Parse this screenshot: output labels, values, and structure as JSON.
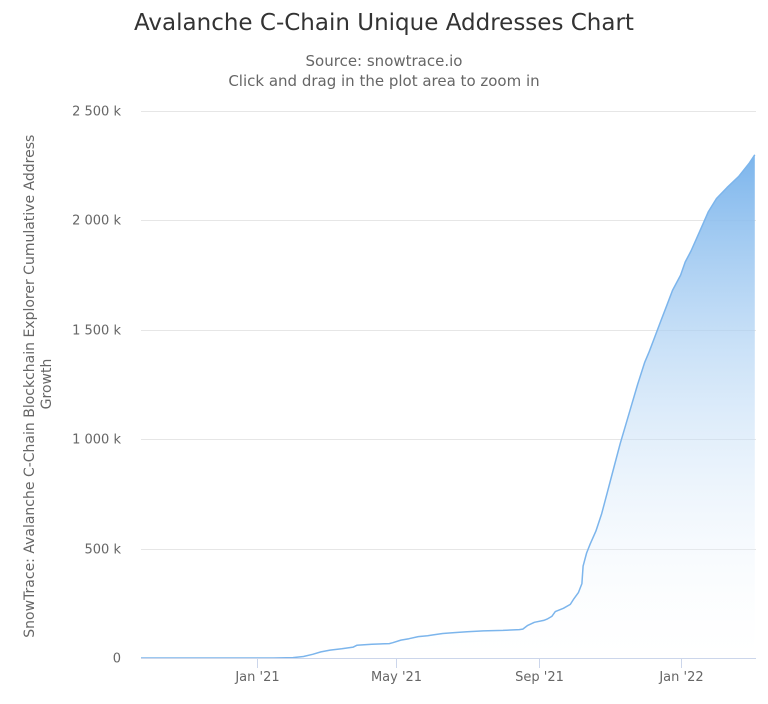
{
  "chart_data": {
    "type": "area",
    "title": "Avalanche C-Chain Unique Addresses Chart",
    "subtitle": "Source: snowtrace.io",
    "subtitle_hint": "Click and drag in the plot area to zoom in",
    "ylabel_lines": [
      "SnowTrace: Avalanche C-Chain Blockchain Explorer Cumulative Address",
      "Growth"
    ],
    "xlabel": "",
    "x_ticks": [
      {
        "date": "2021-01-01",
        "label": "Jan '21"
      },
      {
        "date": "2021-05-01",
        "label": "May '21"
      },
      {
        "date": "2021-09-01",
        "label": "Sep '21"
      },
      {
        "date": "2022-01-01",
        "label": "Jan '22"
      }
    ],
    "y_ticks": [
      {
        "value": 0,
        "label": "0"
      },
      {
        "value": 500000,
        "label": "500 k"
      },
      {
        "value": 1000000,
        "label": "1 000 k"
      },
      {
        "value": 1500000,
        "label": "1 500 k"
      },
      {
        "value": 2000000,
        "label": "2 000 k"
      },
      {
        "value": 2500000,
        "label": "2 500 k"
      }
    ],
    "xlim": [
      "2020-09-23",
      "2022-03-07"
    ],
    "ylim": [
      0,
      2500000
    ],
    "grid": true,
    "legend": "none",
    "colors": {
      "line": "#7cb5ec",
      "fill_top": "#7cb5ec",
      "fill_bottom": "#ffffff",
      "grid": "#e6e6e6",
      "axis": "#ccd6eb"
    },
    "series": [
      {
        "x": [
          "2020-09-23",
          "2020-10-15",
          "2020-11-15",
          "2020-12-15",
          "2021-01-15",
          "2021-02-01",
          "2021-02-10",
          "2021-02-18",
          "2021-02-25",
          "2021-03-05",
          "2021-03-15",
          "2021-03-25",
          "2021-03-28",
          "2021-04-10",
          "2021-04-25",
          "2021-04-28",
          "2021-05-05",
          "2021-05-12",
          "2021-05-20",
          "2021-05-28",
          "2021-06-01",
          "2021-06-10",
          "2021-06-20",
          "2021-07-01",
          "2021-07-15",
          "2021-08-01",
          "2021-08-15",
          "2021-08-18",
          "2021-08-22",
          "2021-08-28",
          "2021-09-05",
          "2021-09-08",
          "2021-09-12",
          "2021-09-15",
          "2021-09-22",
          "2021-09-28",
          "2021-10-01",
          "2021-10-05",
          "2021-10-08",
          "2021-10-09",
          "2021-10-12",
          "2021-10-15",
          "2021-10-20",
          "2021-10-25",
          "2021-10-30",
          "2021-11-05",
          "2021-11-10",
          "2021-11-15",
          "2021-11-20",
          "2021-11-25",
          "2021-12-01",
          "2021-12-05",
          "2021-12-10",
          "2021-12-15",
          "2021-12-20",
          "2021-12-25",
          "2022-01-01",
          "2022-01-05",
          "2022-01-10",
          "2022-01-15",
          "2022-01-20",
          "2022-01-25",
          "2022-02-01",
          "2022-02-10",
          "2022-02-20",
          "2022-03-01",
          "2022-03-06"
        ],
        "values": [
          0,
          0,
          0,
          0,
          0,
          2000,
          7000,
          17000,
          28000,
          36000,
          42000,
          50000,
          58000,
          63000,
          66000,
          70000,
          82000,
          88000,
          98000,
          102000,
          105000,
          112000,
          116000,
          120000,
          124000,
          126000,
          130000,
          132000,
          148000,
          163000,
          172000,
          178000,
          190000,
          212000,
          227000,
          245000,
          270000,
          300000,
          340000,
          420000,
          480000,
          520000,
          580000,
          660000,
          760000,
          880000,
          980000,
          1070000,
          1160000,
          1250000,
          1350000,
          1400000,
          1470000,
          1540000,
          1610000,
          1680000,
          1750000,
          1810000,
          1860000,
          1920000,
          1980000,
          2040000,
          2100000,
          2150000,
          2200000,
          2260000,
          2300000
        ]
      }
    ]
  }
}
